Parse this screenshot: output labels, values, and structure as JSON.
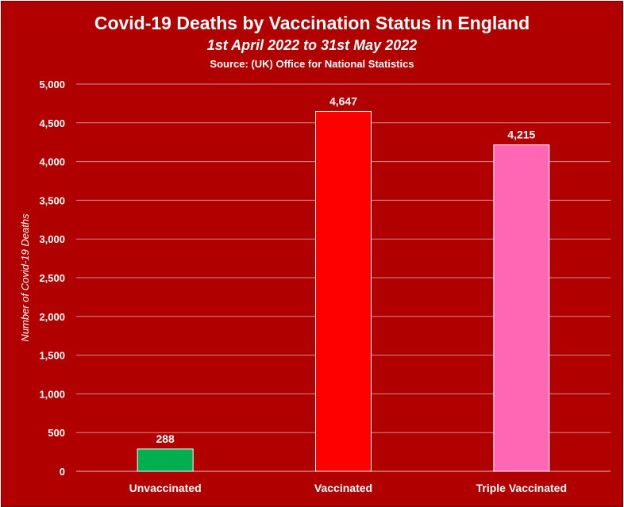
{
  "chart_data": {
    "type": "bar",
    "title": "Covid-19 Deaths by Vaccination Status in England",
    "subtitle": "1st April 2022 to 31st May 2022",
    "source": "Source: (UK) Office for National Statistics",
    "xlabel": "",
    "ylabel": "Number of Covid-19 Deaths",
    "categories": [
      "Unvaccinated",
      "Vaccinated",
      "Triple Vaccinated"
    ],
    "values": [
      288,
      4647,
      4215
    ],
    "value_labels": [
      "288",
      "4,647",
      "4,215"
    ],
    "bar_colors": [
      "#00b050",
      "#ff0000",
      "#ff66b3"
    ],
    "ylim": [
      0,
      5000
    ],
    "yticks": [
      0,
      500,
      1000,
      1500,
      2000,
      2500,
      3000,
      3500,
      4000,
      4500,
      5000
    ],
    "ytick_labels": [
      "0",
      "500",
      "1,000",
      "1,500",
      "2,000",
      "2,500",
      "3,000",
      "3,500",
      "4,000",
      "4,500",
      "5,000"
    ],
    "grid": true,
    "legend": "none",
    "background_color": "#b00000",
    "text_color": "#ffffff"
  }
}
